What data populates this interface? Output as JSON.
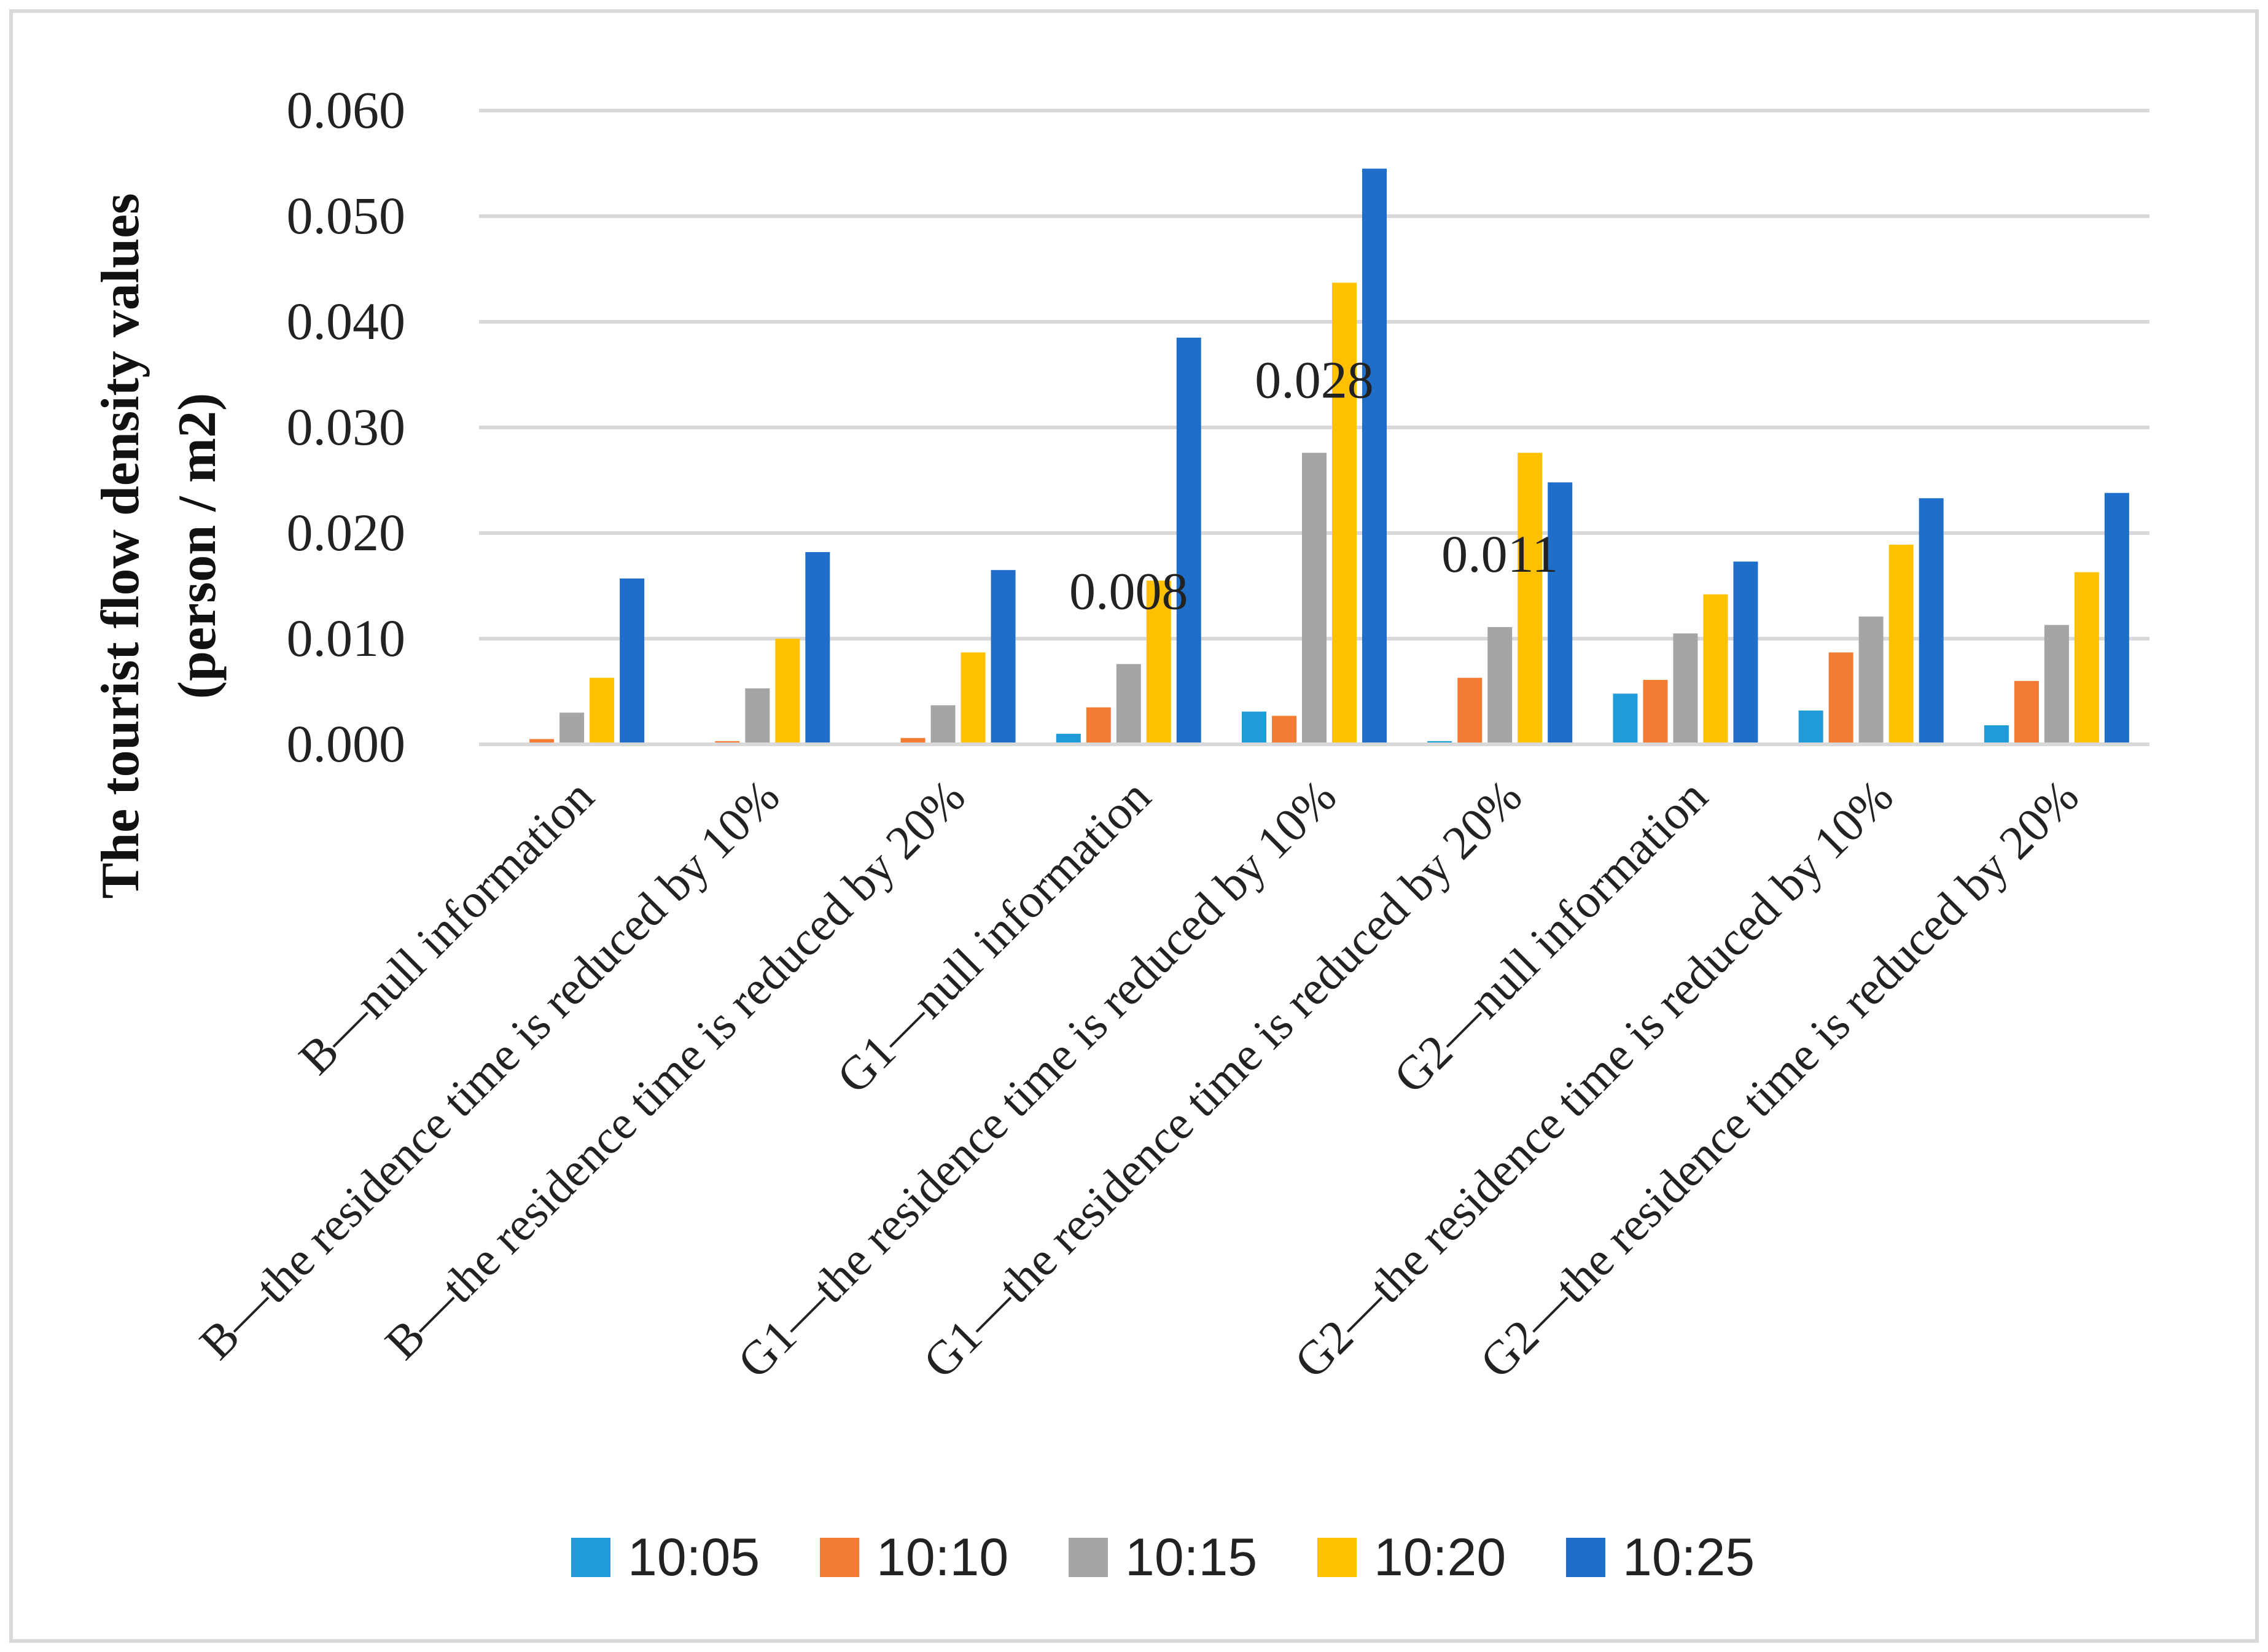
{
  "chart_data": {
    "type": "bar",
    "title": "",
    "xlabel": "",
    "ylabel_line1": "The tourist flow density values",
    "ylabel_line2": "(person / m2)",
    "ylim": [
      0,
      0.06
    ],
    "y_ticks": [
      "0.000",
      "0.010",
      "0.020",
      "0.030",
      "0.040",
      "0.050",
      "0.060"
    ],
    "y_tick_values": [
      0,
      0.01,
      0.02,
      0.03,
      0.04,
      0.05,
      0.06
    ],
    "grid": true,
    "legend_position": "bottom",
    "categories": [
      "B—null information",
      "B—the residence time is reduced by 10%",
      "B—the residence time is reduced by 20%",
      "G1—null information",
      "G1—the residence time is reduced by 10%",
      "G1—the residence time is reduced by 20%",
      "G2—null information",
      "G2—the residence time is reduced by 10%",
      "G2—the residence time is reduced by 20%"
    ],
    "series": [
      {
        "name": "10:05",
        "color": "#1f9bd7",
        "values": [
          0.0,
          0.0,
          0.0,
          0.001,
          0.0031,
          0.0003,
          0.0048,
          0.0032,
          0.0018
        ]
      },
      {
        "name": "10:10",
        "color": "#f47b32",
        "values": [
          0.0005,
          0.0003,
          0.0006,
          0.0035,
          0.0027,
          0.0063,
          0.0061,
          0.0087,
          0.006
        ]
      },
      {
        "name": "10:15",
        "color": "#a5a5a5",
        "values": [
          0.003,
          0.0053,
          0.0037,
          0.0076,
          0.0276,
          0.0111,
          0.0105,
          0.0121,
          0.0113
        ]
      },
      {
        "name": "10:20",
        "color": "#ffc000",
        "values": [
          0.0063,
          0.01,
          0.0087,
          0.0155,
          0.0437,
          0.0276,
          0.0142,
          0.0189,
          0.0163
        ]
      },
      {
        "name": "10:25",
        "color": "#1f6fca",
        "values": [
          0.0157,
          0.0182,
          0.0165,
          0.0385,
          0.0545,
          0.0248,
          0.0173,
          0.0233,
          0.0238
        ]
      }
    ],
    "annotations": [
      {
        "text": "0.008",
        "category_index": 3,
        "series_index": 2
      },
      {
        "text": "0.028",
        "category_index": 4,
        "series_index": 2
      },
      {
        "text": "0.011",
        "category_index": 5,
        "series_index": 2
      }
    ]
  }
}
